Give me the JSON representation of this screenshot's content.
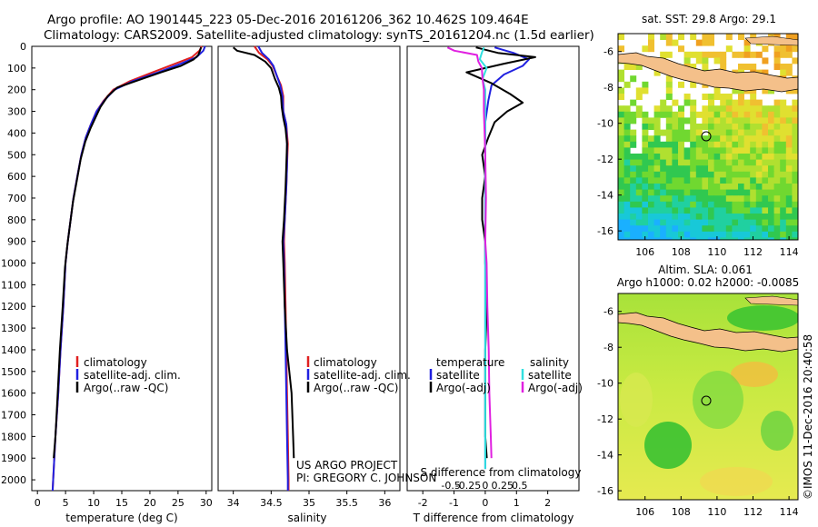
{
  "header": {
    "line1": "Argo profile: AO 1901445_223 05-Dec-2016 20161206_362 10.462S 109.464E",
    "line2": "Climatology: CARS2009. Satellite-adjusted climatology: synTS_20161204.nc (1.5d earlier)"
  },
  "credit": "©IMOS 11-Dec-2016 20:40:58",
  "project": {
    "line1": "US ARGO PROJECT",
    "line2": "PI: GREGORY C. JOHNSON"
  },
  "colors": {
    "climatology": "#e02020",
    "satellite": "#2020e0",
    "argo": "#000000",
    "sat_salinity": "#30e0e0",
    "argo_salinity": "#e020e0",
    "land": "#f4c08a"
  },
  "chart_data": [
    {
      "type": "line",
      "id": "temperature",
      "xlabel": "temperature (deg C)",
      "ylabel": "",
      "xlim": [
        -1,
        31
      ],
      "ylim": [
        0,
        2050
      ],
      "xticks": [
        "0",
        "5",
        "10",
        "15",
        "20",
        "25",
        "30"
      ],
      "yticks": [
        "0",
        "100",
        "200",
        "300",
        "400",
        "500",
        "600",
        "700",
        "800",
        "900",
        "1000",
        "1100",
        "1200",
        "1300",
        "1400",
        "1500",
        "1600",
        "1700",
        "1800",
        "1900",
        "2000"
      ],
      "legend": [
        "climatology",
        "satellite-adj. clim.",
        "Argo(..raw -QC)"
      ],
      "series": [
        {
          "name": "climatology",
          "color": "#e02020",
          "points": [
            [
              29.2,
              0
            ],
            [
              28.8,
              20
            ],
            [
              27.5,
              50
            ],
            [
              24.5,
              80
            ],
            [
              20.5,
              120
            ],
            [
              16.5,
              160
            ],
            [
              13.5,
              200
            ],
            [
              11.8,
              250
            ],
            [
              10.5,
              300
            ],
            [
              9.5,
              360
            ],
            [
              8.6,
              420
            ],
            [
              7.8,
              500
            ],
            [
              7.1,
              600
            ],
            [
              6.4,
              700
            ],
            [
              5.9,
              800
            ],
            [
              5.4,
              900
            ],
            [
              5.0,
              1000
            ],
            [
              4.6,
              1200
            ],
            [
              4.1,
              1400
            ],
            [
              3.7,
              1600
            ],
            [
              3.2,
              1800
            ],
            [
              2.8,
              2000
            ],
            [
              2.7,
              2050
            ]
          ]
        },
        {
          "name": "satellite-adj. clim.",
          "color": "#2020e0",
          "points": [
            [
              29.8,
              0
            ],
            [
              29.5,
              20
            ],
            [
              28.3,
              50
            ],
            [
              25.5,
              80
            ],
            [
              21.5,
              120
            ],
            [
              17,
              160
            ],
            [
              13.7,
              200
            ],
            [
              11.9,
              250
            ],
            [
              10.5,
              300
            ],
            [
              9.5,
              360
            ],
            [
              8.6,
              420
            ],
            [
              7.8,
              500
            ],
            [
              7.1,
              600
            ],
            [
              6.4,
              700
            ],
            [
              5.9,
              800
            ],
            [
              5.4,
              900
            ],
            [
              5.0,
              1000
            ],
            [
              4.6,
              1200
            ],
            [
              4.1,
              1400
            ],
            [
              3.7,
              1600
            ],
            [
              3.2,
              1800
            ],
            [
              2.8,
              2000
            ],
            [
              2.7,
              2050
            ]
          ]
        },
        {
          "name": "Argo(..raw -QC)",
          "color": "#000000",
          "points": [
            [
              29.1,
              5
            ],
            [
              28.9,
              20
            ],
            [
              28.6,
              40
            ],
            [
              27.8,
              60
            ],
            [
              25.5,
              90
            ],
            [
              22,
              120
            ],
            [
              17.5,
              160
            ],
            [
              14.2,
              190
            ],
            [
              12.5,
              230
            ],
            [
              11.2,
              280
            ],
            [
              10.3,
              330
            ],
            [
              9.4,
              380
            ],
            [
              8.5,
              440
            ],
            [
              7.7,
              520
            ],
            [
              7.0,
              620
            ],
            [
              6.3,
              720
            ],
            [
              5.8,
              820
            ],
            [
              5.3,
              920
            ],
            [
              4.9,
              1020
            ],
            [
              4.5,
              1200
            ],
            [
              4.0,
              1400
            ],
            [
              3.6,
              1600
            ],
            [
              3.2,
              1800
            ],
            [
              2.9,
              1900
            ]
          ]
        }
      ]
    },
    {
      "type": "line",
      "id": "salinity",
      "xlabel": "salinity",
      "ylabel": "",
      "xlim": [
        33.8,
        36.2
      ],
      "ylim": [
        0,
        2050
      ],
      "xticks": [
        "34",
        "34.5",
        "35",
        "35.5",
        "36"
      ],
      "legend": [
        "climatology",
        "satellite-adj. clim.",
        "Argo(..raw -QC)"
      ],
      "series": [
        {
          "name": "climatology",
          "color": "#e02020",
          "points": [
            [
              34.28,
              0
            ],
            [
              34.34,
              30
            ],
            [
              34.45,
              60
            ],
            [
              34.52,
              90
            ],
            [
              34.58,
              140
            ],
            [
              34.63,
              180
            ],
            [
              34.66,
              230
            ],
            [
              34.66,
              300
            ],
            [
              34.7,
              360
            ],
            [
              34.72,
              450
            ],
            [
              34.71,
              550
            ],
            [
              34.7,
              650
            ],
            [
              34.68,
              800
            ],
            [
              34.67,
              900
            ],
            [
              34.68,
              1000
            ],
            [
              34.69,
              1200
            ],
            [
              34.7,
              1400
            ],
            [
              34.71,
              1600
            ],
            [
              34.72,
              1800
            ],
            [
              34.73,
              2000
            ],
            [
              34.73,
              2050
            ]
          ]
        },
        {
          "name": "satellite-adj. clim.",
          "color": "#2020e0",
          "points": [
            [
              34.33,
              0
            ],
            [
              34.38,
              30
            ],
            [
              34.47,
              60
            ],
            [
              34.53,
              90
            ],
            [
              34.58,
              140
            ],
            [
              34.62,
              180
            ],
            [
              34.65,
              230
            ],
            [
              34.66,
              300
            ],
            [
              34.7,
              360
            ],
            [
              34.71,
              450
            ],
            [
              34.71,
              550
            ],
            [
              34.7,
              650
            ],
            [
              34.68,
              800
            ],
            [
              34.66,
              900
            ],
            [
              34.67,
              1000
            ],
            [
              34.68,
              1200
            ],
            [
              34.69,
              1400
            ],
            [
              34.7,
              1600
            ],
            [
              34.71,
              1800
            ],
            [
              34.72,
              2000
            ],
            [
              34.72,
              2050
            ]
          ]
        },
        {
          "name": "Argo(..raw -QC)",
          "color": "#000000",
          "points": [
            [
              34.0,
              5
            ],
            [
              34.05,
              20
            ],
            [
              34.28,
              40
            ],
            [
              34.42,
              70
            ],
            [
              34.5,
              100
            ],
            [
              34.55,
              150
            ],
            [
              34.6,
              190
            ],
            [
              34.63,
              230
            ],
            [
              34.64,
              280
            ],
            [
              34.66,
              330
            ],
            [
              34.69,
              380
            ],
            [
              34.71,
              450
            ],
            [
              34.7,
              550
            ],
            [
              34.69,
              650
            ],
            [
              34.67,
              800
            ],
            [
              34.65,
              900
            ],
            [
              34.66,
              1000
            ],
            [
              34.68,
              1200
            ],
            [
              34.71,
              1400
            ],
            [
              34.74,
              1500
            ],
            [
              34.77,
              1600
            ],
            [
              34.79,
              1800
            ],
            [
              34.8,
              1900
            ]
          ]
        }
      ]
    },
    {
      "type": "line",
      "id": "difference",
      "xlabel": "T difference from climatology",
      "x2label": "S difference from climatology",
      "xlim": [
        -2.5,
        3
      ],
      "ylim": [
        0,
        2050
      ],
      "xticks": [
        "-2",
        "-1",
        "0",
        "1",
        "2"
      ],
      "x2ticks": [
        "-0.5",
        "-0.25",
        "0",
        "0.25",
        "0.5"
      ],
      "legend_left_title": "temperature",
      "legend_right_title": "salinity",
      "legend_left": [
        "satellite",
        "Argo(-adj)"
      ],
      "legend_right": [
        "satellite",
        "Argo(-adj)"
      ],
      "series": [
        {
          "name": "T satellite",
          "color": "#2020e0",
          "points": [
            [
              0.3,
              5
            ],
            [
              0.9,
              30
            ],
            [
              1.4,
              60
            ],
            [
              1.2,
              90
            ],
            [
              0.6,
              130
            ],
            [
              0.2,
              180
            ],
            [
              0.1,
              250
            ],
            [
              0.0,
              350
            ],
            [
              0.0,
              500
            ],
            [
              0.0,
              700
            ],
            [
              0.0,
              900
            ],
            [
              0.0,
              1100
            ],
            [
              0.0,
              1300
            ],
            [
              0.0,
              1500
            ],
            [
              0.0,
              1700
            ],
            [
              0.0,
              1900
            ],
            [
              0.0,
              1950
            ]
          ]
        },
        {
          "name": "T Argo(-adj)",
          "color": "#000000",
          "points": [
            [
              -0.3,
              5
            ],
            [
              0.4,
              30
            ],
            [
              1.6,
              50
            ],
            [
              0.6,
              80
            ],
            [
              -0.6,
              120
            ],
            [
              0.2,
              170
            ],
            [
              0.8,
              220
            ],
            [
              1.2,
              260
            ],
            [
              0.7,
              300
            ],
            [
              0.3,
              350
            ],
            [
              0.1,
              420
            ],
            [
              -0.1,
              500
            ],
            [
              0.0,
              600
            ],
            [
              -0.1,
              700
            ],
            [
              -0.1,
              800
            ],
            [
              0.0,
              900
            ],
            [
              0.0,
              1000
            ],
            [
              0.05,
              1200
            ],
            [
              0.0,
              1400
            ],
            [
              0.0,
              1600
            ],
            [
              0.0,
              1800
            ],
            [
              0.05,
              1900
            ]
          ]
        },
        {
          "name": "S satellite",
          "color": "#30e0e0",
          "points": [
            [
              -0.02,
              5
            ],
            [
              -0.05,
              30
            ],
            [
              -0.08,
              60
            ],
            [
              0.02,
              100
            ],
            [
              -0.04,
              150
            ],
            [
              0.0,
              200
            ],
            [
              0.0,
              300
            ],
            [
              0.0,
              500
            ],
            [
              0.0,
              700
            ],
            [
              0.0,
              900
            ],
            [
              0.0,
              1100
            ],
            [
              0.0,
              1300
            ],
            [
              0.0,
              1500
            ],
            [
              0.0,
              1700
            ],
            [
              0.0,
              1900
            ],
            [
              0.0,
              1950
            ]
          ]
        },
        {
          "name": "S Argo(-adj)",
          "color": "#e020e0",
          "points": [
            [
              -0.55,
              5
            ],
            [
              -0.45,
              20
            ],
            [
              -0.12,
              40
            ],
            [
              -0.1,
              70
            ],
            [
              -0.05,
              100
            ],
            [
              -0.04,
              150
            ],
            [
              -0.02,
              200
            ],
            [
              -0.02,
              300
            ],
            [
              -0.01,
              400
            ],
            [
              0.0,
              500
            ],
            [
              0.01,
              700
            ],
            [
              0.0,
              900
            ],
            [
              0.02,
              1000
            ],
            [
              0.03,
              1200
            ],
            [
              0.05,
              1400
            ],
            [
              0.06,
              1600
            ],
            [
              0.08,
              1800
            ],
            [
              0.09,
              1900
            ]
          ]
        }
      ]
    },
    {
      "type": "heatmap",
      "id": "sst-map",
      "title": "sat. SST: 29.8 Argo: 29.1",
      "xlim": [
        104.5,
        114.5
      ],
      "ylim": [
        -16.5,
        -5
      ],
      "xticks": [
        "106",
        "108",
        "110",
        "112",
        "114"
      ],
      "yticks": [
        "-6",
        "-8",
        "-10",
        "-12",
        "-14",
        "-16"
      ],
      "marker": [
        109.464,
        -10.462
      ]
    },
    {
      "type": "heatmap",
      "id": "sla-map",
      "title": "Altim. SLA: 0.061",
      "subtitle": "Argo h1000: 0.02 h2000: -0.0085",
      "xlim": [
        104.5,
        114.5
      ],
      "ylim": [
        -16.5,
        -5
      ],
      "xticks": [
        "106",
        "108",
        "110",
        "112",
        "114"
      ],
      "yticks": [
        "-6",
        "-8",
        "-10",
        "-12",
        "-14",
        "-16"
      ],
      "marker": [
        109.464,
        -10.462
      ]
    }
  ]
}
